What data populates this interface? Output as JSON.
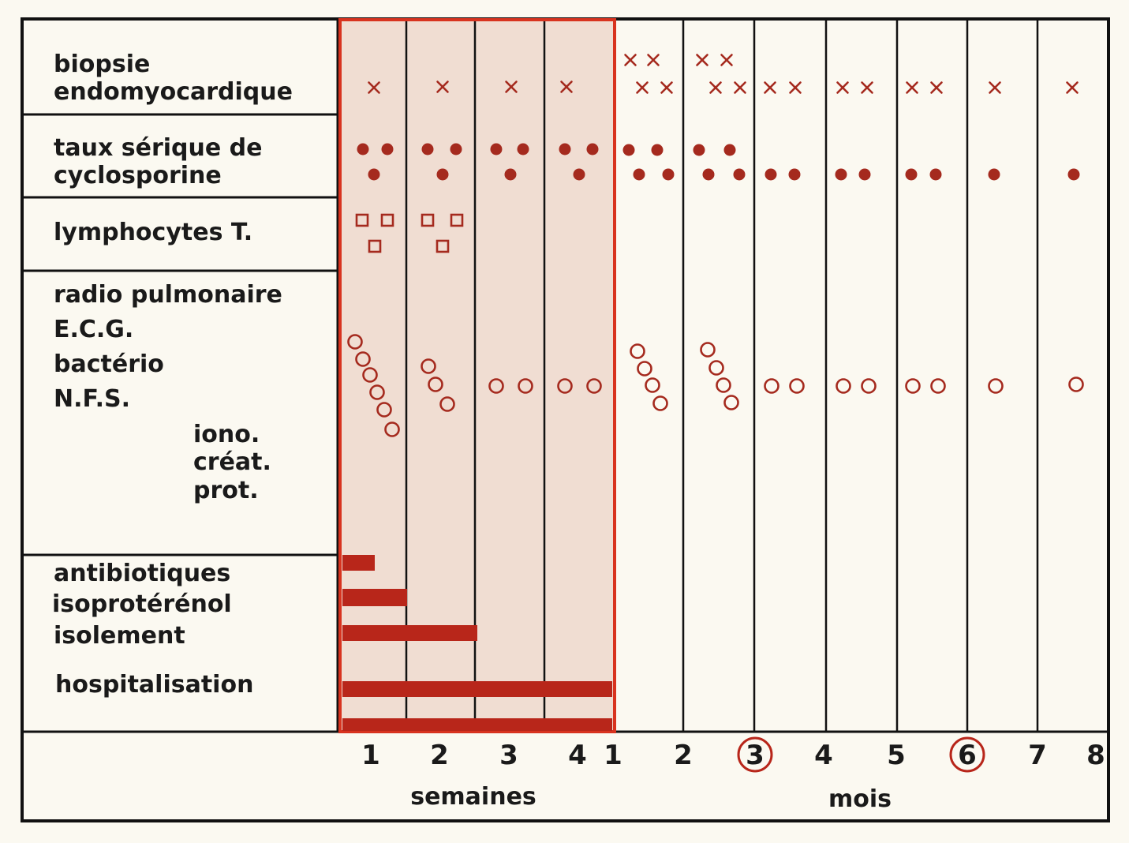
{
  "rows": [
    {
      "id": "biopsy",
      "labels": [
        "biopsie",
        "endomyocardique"
      ]
    },
    {
      "id": "cyclo",
      "labels": [
        "taux sérique de",
        "cyclosporine"
      ]
    },
    {
      "id": "lympho",
      "labels": [
        "lymphocytes T."
      ]
    },
    {
      "id": "exams",
      "labels": [
        "radio pulmonaire",
        "E.C.G.",
        "bactério",
        "N.F.S."
      ],
      "sublabels": [
        "iono.",
        "créat.",
        "prot."
      ]
    },
    {
      "id": "treatments",
      "labels": [
        "antibiotiques",
        "isoprotérénol",
        "isolement",
        "hospitalisation"
      ]
    }
  ],
  "axis": {
    "week_ticks": [
      "1",
      "2",
      "3",
      "4"
    ],
    "month_ticks": [
      "1",
      "2",
      "3",
      "4",
      "5",
      "6",
      "7",
      "8"
    ],
    "circled_months": [
      "3",
      "6"
    ],
    "weeks_label": "semaines",
    "months_label": "mois"
  },
  "legend_markers": {
    "biopsy": "cross",
    "cyclo": "filled-circle",
    "lympho": "open-square",
    "exams": "open-circle"
  },
  "colors": {
    "marker": "#a52a1e",
    "highlight_fill": "#f0ddd2",
    "highlight_border": "#d8331f",
    "bar": "#b8261a",
    "frame": "#111111",
    "background": "#fbf9f1"
  }
}
